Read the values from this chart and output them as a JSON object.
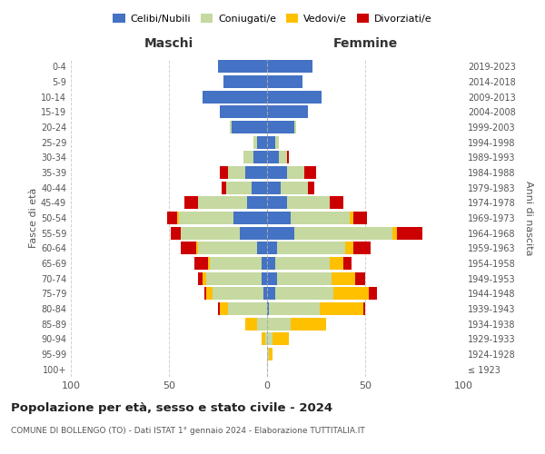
{
  "age_groups": [
    "100+",
    "95-99",
    "90-94",
    "85-89",
    "80-84",
    "75-79",
    "70-74",
    "65-69",
    "60-64",
    "55-59",
    "50-54",
    "45-49",
    "40-44",
    "35-39",
    "30-34",
    "25-29",
    "20-24",
    "15-19",
    "10-14",
    "5-9",
    "0-4"
  ],
  "birth_years": [
    "≤ 1923",
    "1924-1928",
    "1929-1933",
    "1934-1938",
    "1939-1943",
    "1944-1948",
    "1949-1953",
    "1954-1958",
    "1959-1963",
    "1964-1968",
    "1969-1973",
    "1974-1978",
    "1979-1983",
    "1984-1988",
    "1989-1993",
    "1994-1998",
    "1999-2003",
    "2004-2008",
    "2009-2013",
    "2014-2018",
    "2019-2023"
  ],
  "colors": {
    "celibe": "#4472c4",
    "coniugato": "#c5d9a0",
    "vedovo": "#ffc000",
    "divorziato": "#cc0000"
  },
  "maschi": {
    "celibe": [
      0,
      0,
      0,
      0,
      0,
      2,
      3,
      3,
      5,
      14,
      17,
      10,
      8,
      11,
      7,
      5,
      18,
      24,
      33,
      22,
      25
    ],
    "coniugato": [
      0,
      0,
      1,
      5,
      20,
      26,
      28,
      26,
      30,
      30,
      28,
      25,
      13,
      9,
      5,
      2,
      1,
      0,
      0,
      0,
      0
    ],
    "vedovo": [
      0,
      0,
      2,
      6,
      4,
      3,
      2,
      1,
      1,
      0,
      1,
      0,
      0,
      0,
      0,
      0,
      0,
      0,
      0,
      0,
      0
    ],
    "divorziato": [
      0,
      0,
      0,
      0,
      1,
      1,
      2,
      7,
      8,
      5,
      5,
      7,
      2,
      4,
      0,
      0,
      0,
      0,
      0,
      0,
      0
    ]
  },
  "femmine": {
    "nubile": [
      0,
      0,
      0,
      0,
      1,
      4,
      5,
      4,
      5,
      14,
      12,
      10,
      7,
      10,
      6,
      4,
      14,
      21,
      28,
      18,
      23
    ],
    "coniugata": [
      0,
      1,
      3,
      12,
      26,
      30,
      28,
      28,
      35,
      50,
      30,
      22,
      14,
      9,
      4,
      2,
      1,
      0,
      0,
      0,
      0
    ],
    "vedova": [
      0,
      2,
      8,
      18,
      22,
      18,
      12,
      7,
      4,
      2,
      2,
      0,
      0,
      0,
      0,
      0,
      0,
      0,
      0,
      0,
      0
    ],
    "divorziata": [
      0,
      0,
      0,
      0,
      1,
      4,
      5,
      4,
      9,
      13,
      7,
      7,
      3,
      6,
      1,
      0,
      0,
      0,
      0,
      0,
      0
    ]
  },
  "xlim": 100,
  "title": "Popolazione per età, sesso e stato civile - 2024",
  "subtitle": "COMUNE DI BOLLENGO (TO) - Dati ISTAT 1° gennaio 2024 - Elaborazione TUTTITALIA.IT",
  "xlabel_left": "Maschi",
  "xlabel_right": "Femmine",
  "ylabel_left": "Fasce di età",
  "ylabel_right": "Anni di nascita",
  "legend_labels": [
    "Celibi/Nubili",
    "Coniugati/e",
    "Vedovi/e",
    "Divorziati/e"
  ],
  "background_color": "#ffffff",
  "grid_color": "#cccccc"
}
